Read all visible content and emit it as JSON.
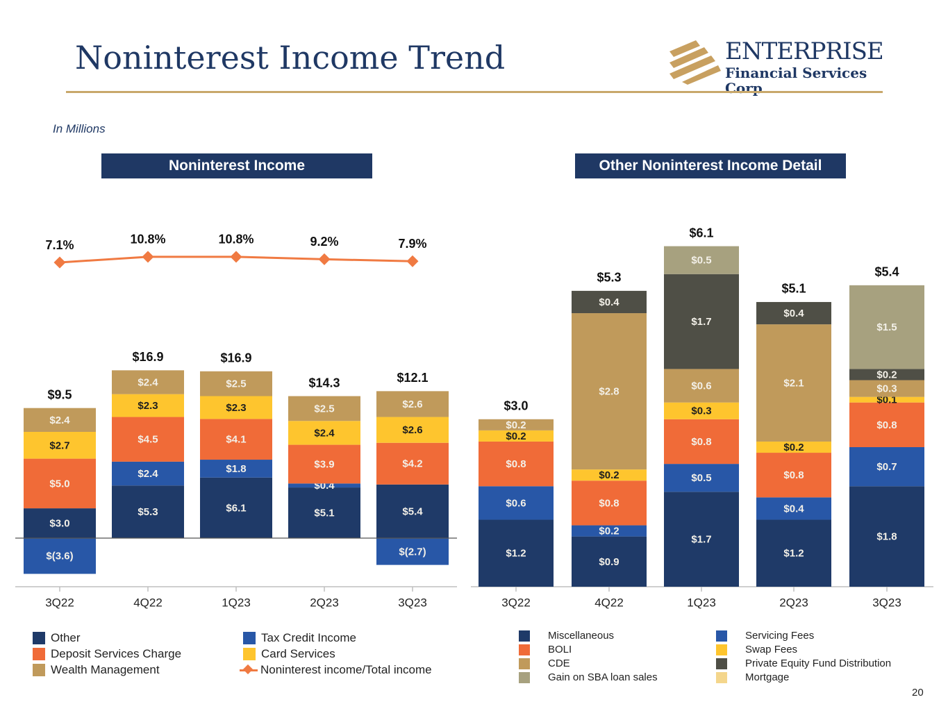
{
  "title": "Noninterest Income Trend",
  "logo": {
    "line1": "ENTERPRISE",
    "line2": "Financial Services Corp"
  },
  "units_note": "In Millions",
  "page_number": "20",
  "colors": {
    "navy": "#1f3a68",
    "blue": "#2857a7",
    "orange": "#f06b38",
    "yellow": "#fec52e",
    "tan": "#c09a5b",
    "sage": "#a7a17f",
    "dark_gray": "#4f4f46",
    "light_tan": "#f4d68c",
    "line": "#f07a42"
  },
  "chart_data": [
    {
      "type": "bar",
      "panel_title": "Noninterest Income",
      "stacked": true,
      "categories": [
        "3Q22",
        "4Q22",
        "1Q23",
        "2Q23",
        "3Q23"
      ],
      "ylim": [
        -4,
        17
      ],
      "series": [
        {
          "name": "Other",
          "color": "#1f3a68",
          "values": [
            3.0,
            5.3,
            6.1,
            5.1,
            5.4
          ],
          "labels": [
            "$3.0",
            "$5.3",
            "$6.1",
            "$5.1",
            "$5.4"
          ]
        },
        {
          "name": "Tax Credit Income",
          "color": "#2857a7",
          "values": [
            -3.6,
            2.4,
            1.8,
            0.4,
            -2.7
          ],
          "labels": [
            "$(3.6)",
            "$2.4",
            "$1.8",
            "$0.4",
            "$(2.7)"
          ]
        },
        {
          "name": "Deposit Services Charge",
          "color": "#f06b38",
          "values": [
            5.0,
            4.5,
            4.1,
            3.9,
            4.2
          ],
          "labels": [
            "$5.0",
            "$4.5",
            "$4.1",
            "$3.9",
            "$4.2"
          ]
        },
        {
          "name": "Card Services",
          "color": "#fec52e",
          "values": [
            2.7,
            2.3,
            2.3,
            2.4,
            2.6
          ],
          "labels": [
            "$2.7",
            "$2.3",
            "$2.3",
            "$2.4",
            "$2.6"
          ]
        },
        {
          "name": "Wealth Management",
          "color": "#c09a5b",
          "values": [
            2.4,
            2.4,
            2.5,
            2.5,
            2.6
          ],
          "labels": [
            "$2.4",
            "$2.4",
            "$2.5",
            "$2.5",
            "$2.6"
          ]
        }
      ],
      "totals": [
        "$9.5",
        "$16.9",
        "$16.9",
        "$14.3",
        "$12.1"
      ],
      "line_series": {
        "name": "Noninterest income/Total income",
        "values": [
          7.1,
          10.8,
          10.8,
          9.2,
          7.9
        ],
        "labels": [
          "7.1%",
          "10.8%",
          "10.8%",
          "9.2%",
          "7.9%"
        ]
      },
      "legend": [
        {
          "label": "Other",
          "kind": "box",
          "color": "#1f3a68"
        },
        {
          "label": "Tax Credit Income",
          "kind": "box",
          "color": "#2857a7"
        },
        {
          "label": "Deposit Services Charge",
          "kind": "box",
          "color": "#f06b38"
        },
        {
          "label": "Card Services",
          "kind": "box",
          "color": "#fec52e"
        },
        {
          "label": "Wealth Management",
          "kind": "box",
          "color": "#c09a5b"
        },
        {
          "label": "Noninterest income/Total income",
          "kind": "line",
          "color": "#f07a42"
        }
      ]
    },
    {
      "type": "bar",
      "panel_title": "Other Noninterest Income Detail",
      "stacked": true,
      "categories": [
        "3Q22",
        "4Q22",
        "1Q23",
        "2Q23",
        "3Q23"
      ],
      "ylim": [
        0,
        6.1
      ],
      "series": [
        {
          "name": "Miscellaneous",
          "color": "#1f3a68",
          "values": [
            1.2,
            0.9,
            1.7,
            1.2,
            1.8
          ],
          "labels": [
            "$1.2",
            "$0.9",
            "$1.7",
            "$1.2",
            "$1.8"
          ]
        },
        {
          "name": "Servicing Fees",
          "color": "#2857a7",
          "values": [
            0.6,
            0.2,
            0.5,
            0.4,
            0.7
          ],
          "labels": [
            "$0.6",
            "$0.2",
            "$0.5",
            "$0.4",
            "$0.7"
          ]
        },
        {
          "name": "BOLI",
          "color": "#f06b38",
          "values": [
            0.8,
            0.8,
            0.8,
            0.8,
            0.8
          ],
          "labels": [
            "$0.8",
            "$0.8",
            "$0.8",
            "$0.8",
            "$0.8"
          ]
        },
        {
          "name": "Swap Fees",
          "color": "#fec52e",
          "values": [
            0.2,
            0.2,
            0.3,
            0.2,
            0.1
          ],
          "labels": [
            "$0.2",
            "$0.2",
            "$0.3",
            "$0.2",
            "$0.1"
          ]
        },
        {
          "name": "CDE",
          "color": "#c09a5b",
          "values": [
            0.2,
            2.8,
            0.6,
            2.1,
            0.3
          ],
          "labels": [
            "$0.2",
            "$2.8",
            "$0.6",
            "$2.1",
            "$0.3"
          ]
        },
        {
          "name": "Private Equity Fund Distribution",
          "color": "#4f4f46",
          "values": [
            0,
            0.4,
            1.7,
            0.4,
            0.2
          ],
          "labels": [
            "",
            "$0.4",
            "$1.7",
            "$0.4",
            "$0.2"
          ]
        },
        {
          "name": "Gain on SBA loan sales",
          "color": "#a7a17f",
          "values": [
            0,
            0,
            0.5,
            0,
            1.5
          ],
          "labels": [
            "",
            "",
            "$0.5",
            "",
            "$1.5"
          ]
        },
        {
          "name": "Mortgage",
          "color": "#f4d68c",
          "values": [
            0,
            0,
            0,
            0,
            0
          ],
          "labels": [
            "",
            "",
            "",
            "",
            ""
          ]
        }
      ],
      "totals": [
        "$3.0",
        "$5.3",
        "$6.1",
        "$5.1",
        "$5.4"
      ],
      "legend": [
        {
          "label": "Miscellaneous",
          "color": "#1f3a68"
        },
        {
          "label": "BOLI",
          "color": "#f06b38"
        },
        {
          "label": "CDE",
          "color": "#c09a5b"
        },
        {
          "label": "Gain on SBA loan sales",
          "color": "#a7a17f"
        },
        {
          "label": "Servicing Fees",
          "color": "#2857a7"
        },
        {
          "label": "Swap Fees",
          "color": "#fec52e"
        },
        {
          "label": "Private Equity Fund Distribution",
          "color": "#4f4f46"
        },
        {
          "label": "Mortgage",
          "color": "#f4d68c"
        }
      ]
    }
  ]
}
